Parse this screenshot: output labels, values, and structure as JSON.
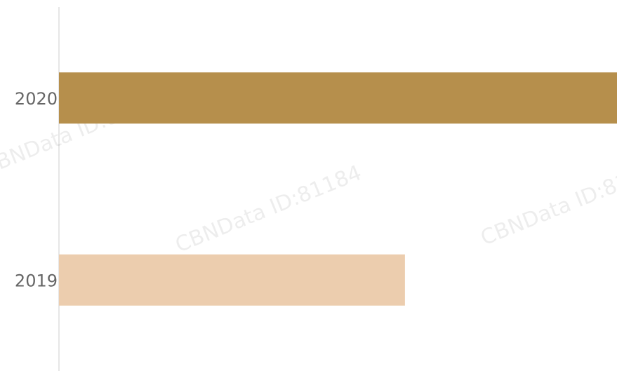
{
  "chart_data": {
    "type": "bar",
    "orientation": "horizontal",
    "categories": [
      "2020",
      "2019"
    ],
    "series": [
      {
        "values": [
          100,
          62
        ],
        "colors": [
          "#b68f4c",
          "#eccdae"
        ]
      }
    ],
    "xlim": [
      0,
      100
    ],
    "watermark": "CBNData ID:81184"
  }
}
